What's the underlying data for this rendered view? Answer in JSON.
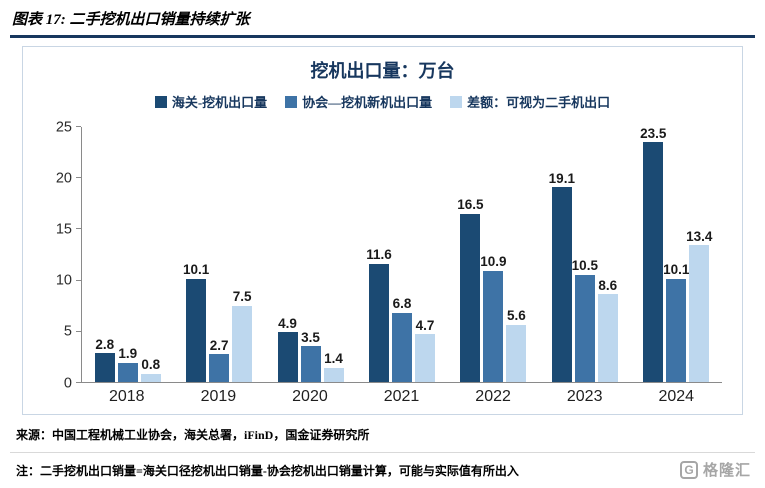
{
  "header": {
    "title": "图表 17:  二手挖机出口销量持续扩张"
  },
  "colors": {
    "accent": "#17375E",
    "axis": "#8a8a8a"
  },
  "chart_data": {
    "type": "bar",
    "title": "挖机出口量：万台",
    "categories": [
      "2018",
      "2019",
      "2020",
      "2021",
      "2022",
      "2023",
      "2024"
    ],
    "series": [
      {
        "name": "海关-挖机出口量",
        "color": "#1B4A73",
        "values": [
          2.8,
          10.1,
          4.9,
          11.6,
          16.5,
          19.1,
          23.5
        ]
      },
      {
        "name": "协会—挖机新机出口量",
        "color": "#3E73A6",
        "values": [
          1.9,
          2.7,
          3.5,
          6.8,
          10.9,
          10.5,
          10.1
        ]
      },
      {
        "name": "差额：可视为二手机出口",
        "color": "#BDD7EE",
        "values": [
          0.8,
          7.5,
          1.4,
          4.7,
          5.6,
          8.6,
          13.4
        ]
      }
    ],
    "ylim": [
      0,
      25
    ],
    "yticks": [
      0,
      5,
      10,
      15,
      20,
      25
    ],
    "legend_position": "top",
    "grid": false,
    "data_labels": true
  },
  "footer": {
    "source": "来源：中国工程机械工业协会，海关总署，iFinD，国金证券研究所",
    "note": "注：二手挖机出口销量=海关口径挖机出口销量-协会挖机出口销量计算，可能与实际值有所出入",
    "logo_text": "格隆汇",
    "logo_letter": "G"
  }
}
